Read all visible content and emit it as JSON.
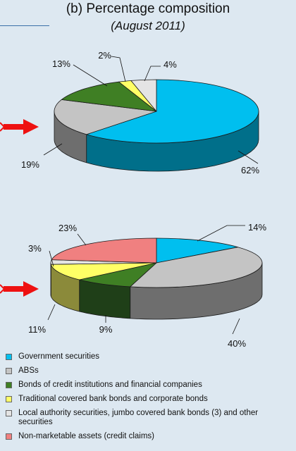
{
  "header": {
    "title": "(b) Percentage composition",
    "subtitle": "(August 2011)"
  },
  "legend": [
    {
      "label": "Government securities",
      "color": "#00bfef"
    },
    {
      "label": "ABSs",
      "color": "#c4c4c4"
    },
    {
      "label": "Bonds of credit institutions and financial companies",
      "color": "#3f7f24"
    },
    {
      "label": "Traditional covered bank bonds and corporate bonds",
      "color": "#ffff66"
    },
    {
      "label": "Local authority securities, jumbo covered bank bonds (3) and other securities",
      "color": "#e4e4e4"
    },
    {
      "label": "Non-marketable assets (credit claims)",
      "color": "#f08080"
    }
  ],
  "chart_data": [
    {
      "type": "pie",
      "slices": [
        {
          "category": "Government securities",
          "value": 62,
          "label": "62%",
          "color": "#00bfef",
          "side": "#006f8a"
        },
        {
          "category": "ABSs",
          "value": 19,
          "label": "19%",
          "color": "#c4c4c4",
          "side": "#6e6e6e"
        },
        {
          "category": "Bonds of credit institutions and financial companies",
          "value": 13,
          "label": "13%",
          "color": "#3f7f24",
          "side": "#1f4a10"
        },
        {
          "category": "Traditional covered bank bonds and corporate bonds",
          "value": 2,
          "label": "2%",
          "color": "#ffff66",
          "side": "#8b8a3a"
        },
        {
          "category": "Local authority securities, jumbo covered bank bonds (3) and other securities",
          "value": 4,
          "label": "4%",
          "color": "#e4e4e4",
          "side": "#8a8a8a"
        }
      ]
    },
    {
      "type": "pie",
      "slices": [
        {
          "category": "Government securities",
          "value": 14,
          "label": "14%",
          "color": "#00bfef",
          "side": "#006f8a"
        },
        {
          "category": "ABSs",
          "value": 40,
          "label": "40%",
          "color": "#c4c4c4",
          "side": "#6e6e6e"
        },
        {
          "category": "Bonds of credit institutions and financial companies",
          "value": 9,
          "label": "9%",
          "color": "#3f7f24",
          "side": "#1f3f18"
        },
        {
          "category": "Traditional covered bank bonds and corporate bonds",
          "value": 11,
          "label": "11%",
          "color": "#ffff66",
          "side": "#8b8a3a"
        },
        {
          "category": "Local authority securities, jumbo covered bank bonds (3) and other securities",
          "value": 3,
          "label": "3%",
          "color": "#e4e4e4",
          "side": "#8a8a8a"
        },
        {
          "category": "Non-marketable assets (credit claims)",
          "value": 23,
          "label": "23%",
          "color": "#f08080",
          "side": "#a05050"
        }
      ]
    }
  ]
}
